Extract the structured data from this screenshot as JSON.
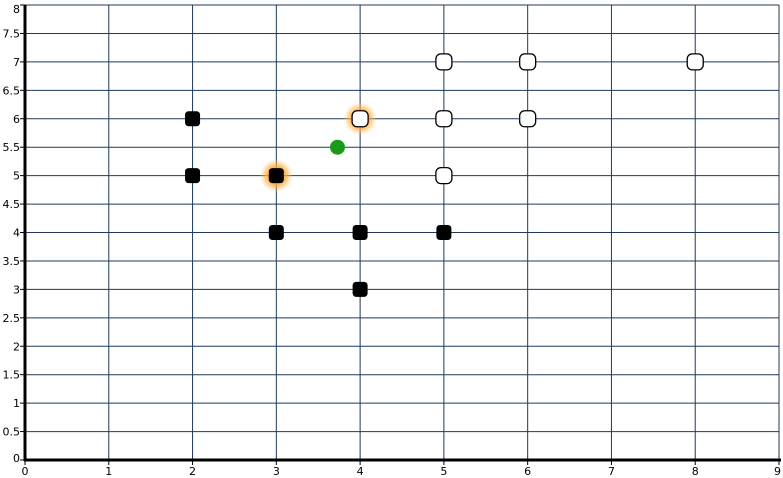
{
  "chart_data": {
    "type": "scatter",
    "title": "",
    "xlabel": "",
    "ylabel": "",
    "xlim": [
      0,
      9
    ],
    "ylim": [
      0,
      8
    ],
    "grid": true,
    "x_ticks": [
      "0",
      "1",
      "2",
      "3",
      "4",
      "5",
      "6",
      "7",
      "8",
      "9"
    ],
    "y_ticks": [
      "0",
      "0.5",
      "1",
      "1.5",
      "2",
      "2.5",
      "3",
      "3.5",
      "4",
      "4.5",
      "5",
      "5.5",
      "6",
      "6.5",
      "7",
      "7.5",
      "8"
    ],
    "series": [
      {
        "marker": "filled-square",
        "color": "#000000",
        "points": [
          {
            "x": 2,
            "y": 6
          },
          {
            "x": 2,
            "y": 5
          },
          {
            "x": 3,
            "y": 5
          },
          {
            "x": 3,
            "y": 4
          },
          {
            "x": 4,
            "y": 4
          },
          {
            "x": 5,
            "y": 4
          },
          {
            "x": 4,
            "y": 3
          }
        ]
      },
      {
        "marker": "hollow-square",
        "color": "#ffffff",
        "points": [
          {
            "x": 5,
            "y": 7
          },
          {
            "x": 6,
            "y": 7
          },
          {
            "x": 8,
            "y": 7
          },
          {
            "x": 4,
            "y": 6
          },
          {
            "x": 5,
            "y": 6
          },
          {
            "x": 6,
            "y": 6
          },
          {
            "x": 5,
            "y": 5
          }
        ]
      },
      {
        "marker": "circle",
        "color": "#1a9a1a",
        "points": [
          {
            "x": 3.73,
            "y": 5.5
          }
        ]
      }
    ],
    "highlighted": [
      {
        "x": 3,
        "y": 5
      },
      {
        "x": 4,
        "y": 6
      }
    ],
    "colors": {
      "grid": "#1f3a5a",
      "axis": "#000000",
      "highlight": "#ff9a1a"
    }
  }
}
